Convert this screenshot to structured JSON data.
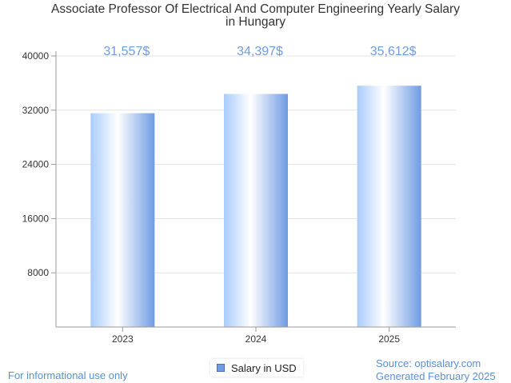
{
  "chart_data": {
    "type": "bar",
    "title_line1": "Associate Professor Of Electrical And Computer Engineering Yearly Salary",
    "title_line2": "in Hungary",
    "categories": [
      "2023",
      "2024",
      "2025"
    ],
    "series": [
      {
        "name": "Salary in USD",
        "values": [
          31557,
          34397,
          35612
        ]
      }
    ],
    "data_labels": [
      "31,557$",
      "34,397$",
      "35,612$"
    ],
    "y_ticks": [
      8000,
      16000,
      24000,
      32000,
      40000
    ],
    "ylim": [
      0,
      40000
    ],
    "grid": true,
    "legend_position": "bottom-center",
    "label_color": "#6f9be3",
    "bar_gradient": [
      "#a9ccfb",
      "#ffffff",
      "#6f9be3"
    ]
  },
  "footer": {
    "left": "For informational use only",
    "source": "Source: optisalary.com",
    "generated": "Generated February 2025"
  }
}
